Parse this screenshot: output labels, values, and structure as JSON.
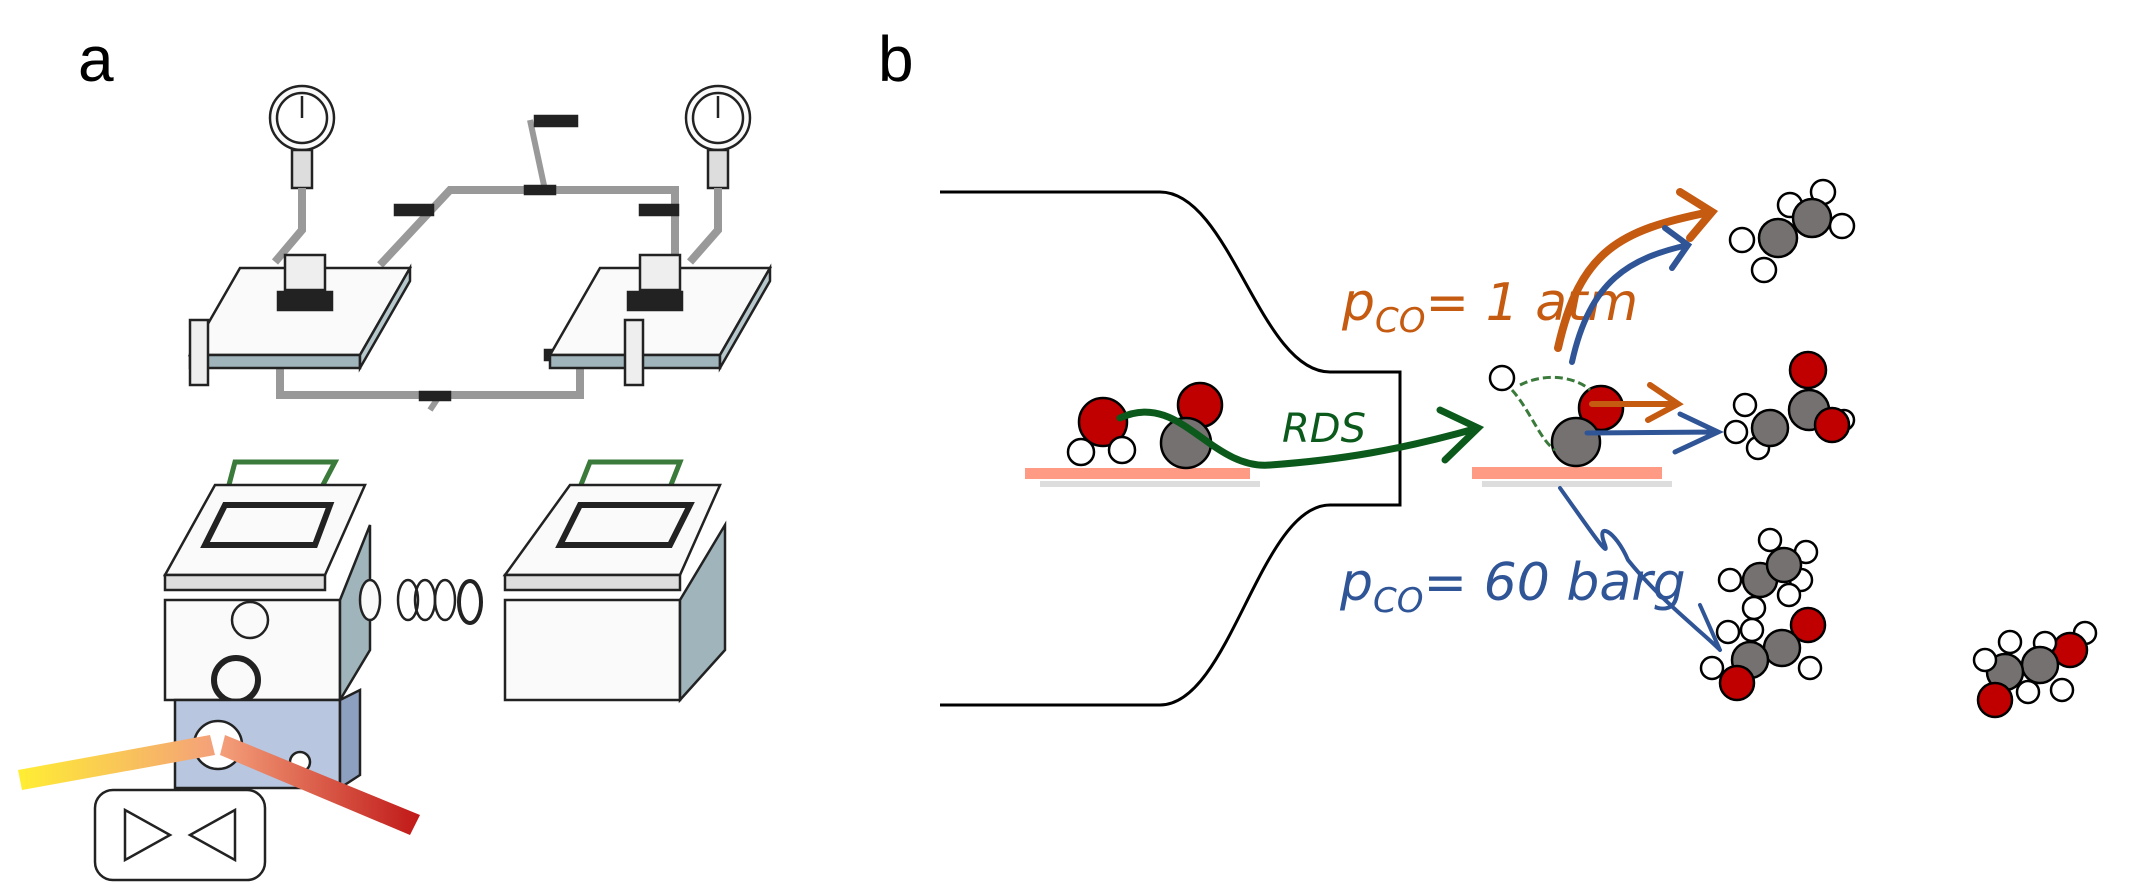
{
  "panels": {
    "a": {
      "label": "a"
    },
    "b": {
      "label": "b",
      "rds_label": "RDS",
      "low_pressure": {
        "symbol": "p",
        "subscript": "CO",
        "value": "= 1 atm"
      },
      "high_pressure": {
        "symbol": "p",
        "subscript": "CO",
        "value": "= 60 barg"
      }
    }
  },
  "colors": {
    "orange": "#c55a11",
    "blue": "#2f5597",
    "green": "#0b5a1c",
    "oxygen": "#c00000",
    "carbon": "#767171",
    "hydrogen": "#ffffff",
    "surface": "#ff9b85",
    "gasket": "#3a7a3a",
    "box": "#9fb4bb"
  }
}
